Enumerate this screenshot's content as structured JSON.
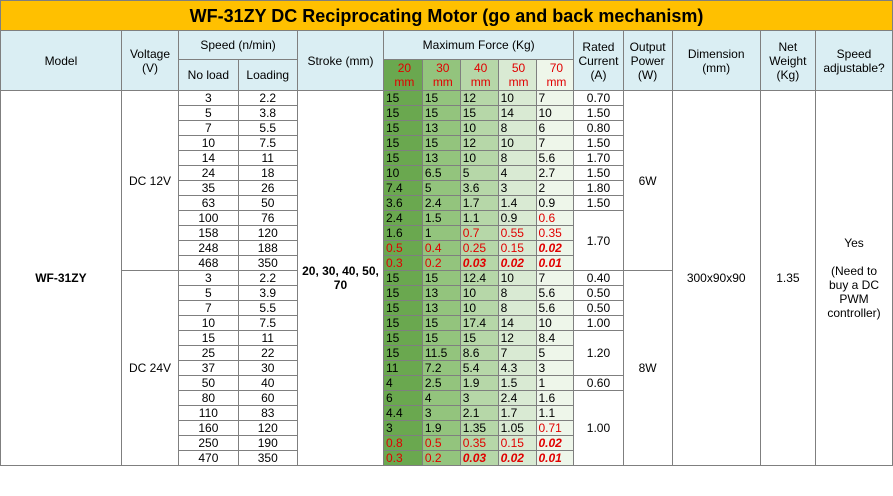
{
  "title": "WF-31ZY DC Reciprocating Motor (go and back mechanism)",
  "headers": {
    "model": "Model",
    "voltage": "Voltage (V)",
    "speed": "Speed (n/min)",
    "no_load": "No load",
    "loading": "Loading",
    "stroke": "Stroke (mm)",
    "max_force": "Maximum Force (Kg)",
    "stroke_cols": [
      "20 mm",
      "30 mm",
      "40 mm",
      "50 mm",
      "70 mm"
    ],
    "rated_current": "Rated Current (A)",
    "output_power": "Output Power (W)",
    "dimension": "Dimension (mm)",
    "net_weight": "Net Weight (Kg)",
    "speed_adjustable": "Speed adjustable?"
  },
  "model": "WF-31ZY",
  "stroke_value": "20, 30, 40, 50, 70",
  "dimension": "300x90x90",
  "net_weight": "1.35",
  "speed_adjustable_yes": "Yes",
  "speed_adjustable_note": "(Need to buy a DC PWM controller)",
  "groups": [
    {
      "voltage": "DC 12V",
      "power": "6W",
      "rows": [
        {
          "no_load": "3",
          "loading": "2.2",
          "f": [
            "15",
            "15",
            "12",
            "10",
            "7"
          ],
          "current": "0.70"
        },
        {
          "no_load": "5",
          "loading": "3.8",
          "f": [
            "15",
            "15",
            "15",
            "14",
            "10"
          ],
          "current": "1.50"
        },
        {
          "no_load": "7",
          "loading": "5.5",
          "f": [
            "15",
            "13",
            "10",
            "8",
            "6"
          ],
          "current": "0.80"
        },
        {
          "no_load": "10",
          "loading": "7.5",
          "f": [
            "15",
            "15",
            "12",
            "10",
            "7"
          ],
          "current": "1.50"
        },
        {
          "no_load": "14",
          "loading": "11",
          "f": [
            "15",
            "13",
            "10",
            "8",
            "5.6"
          ],
          "current": "1.70"
        },
        {
          "no_load": "24",
          "loading": "18",
          "f": [
            "10",
            "6.5",
            "5",
            "4",
            "2.7"
          ],
          "current": "1.50"
        },
        {
          "no_load": "35",
          "loading": "26",
          "f": [
            "7.4",
            "5",
            "3.6",
            "3",
            "2"
          ],
          "current": "1.80"
        },
        {
          "no_load": "63",
          "loading": "50",
          "f": [
            "3.6",
            "2.4",
            "1.7",
            "1.4",
            "0.9"
          ],
          "current": "1.50"
        },
        {
          "no_load": "100",
          "loading": "76",
          "f": [
            "2.4",
            "1.5",
            "1.1",
            "0.9",
            "0.6"
          ],
          "current": ""
        },
        {
          "no_load": "158",
          "loading": "120",
          "f": [
            "1.6",
            "1",
            "0.7",
            "0.55",
            "0.35"
          ],
          "current": ""
        },
        {
          "no_load": "248",
          "loading": "188",
          "f": [
            "0.5",
            "0.4",
            "0.25",
            "0.15",
            "0.02"
          ],
          "current": ""
        },
        {
          "no_load": "468",
          "loading": "350",
          "f": [
            "0.3",
            "0.2",
            "0.03",
            "0.02",
            "0.01"
          ],
          "current": ""
        }
      ],
      "merged_current": "1.70"
    },
    {
      "voltage": "DC 24V",
      "power": "8W",
      "rows": [
        {
          "no_load": "3",
          "loading": "2.2",
          "f": [
            "15",
            "15",
            "12.4",
            "10",
            "7"
          ],
          "current": "0.40"
        },
        {
          "no_load": "5",
          "loading": "3.9",
          "f": [
            "15",
            "13",
            "10",
            "8",
            "5.6"
          ],
          "current": "0.50"
        },
        {
          "no_load": "7",
          "loading": "5.5",
          "f": [
            "15",
            "13",
            "10",
            "8",
            "5.6"
          ],
          "current": "0.50"
        },
        {
          "no_load": "10",
          "loading": "7.5",
          "f": [
            "15",
            "15",
            "17.4",
            "14",
            "10"
          ],
          "current": "1.00"
        },
        {
          "no_load": "15",
          "loading": "11",
          "f": [
            "15",
            "15",
            "15",
            "12",
            "8.4"
          ],
          "current": ""
        },
        {
          "no_load": "25",
          "loading": "22",
          "f": [
            "15",
            "11.5",
            "8.6",
            "7",
            "5"
          ],
          "current": ""
        },
        {
          "no_load": "37",
          "loading": "30",
          "f": [
            "11",
            "7.2",
            "5.4",
            "4.3",
            "3"
          ],
          "current": ""
        },
        {
          "no_load": "50",
          "loading": "40",
          "f": [
            "4",
            "2.5",
            "1.9",
            "1.5",
            "1"
          ],
          "current": "0.60"
        },
        {
          "no_load": "80",
          "loading": "60",
          "f": [
            "6",
            "4",
            "3",
            "2.4",
            "1.6"
          ],
          "current": ""
        },
        {
          "no_load": "110",
          "loading": "83",
          "f": [
            "4.4",
            "3",
            "2.1",
            "1.7",
            "1.1"
          ],
          "current": ""
        },
        {
          "no_load": "160",
          "loading": "120",
          "f": [
            "3",
            "1.9",
            "1.35",
            "1.05",
            "0.71"
          ],
          "current": ""
        },
        {
          "no_load": "250",
          "loading": "190",
          "f": [
            "0.8",
            "0.5",
            "0.35",
            "0.15",
            "0.02"
          ],
          "current": ""
        },
        {
          "no_load": "470",
          "loading": "350",
          "f": [
            "0.3",
            "0.2",
            "0.03",
            "0.02",
            "0.01"
          ],
          "current": ""
        }
      ],
      "merged_current_a": "1.20",
      "merged_current_b": "1.00"
    }
  ]
}
